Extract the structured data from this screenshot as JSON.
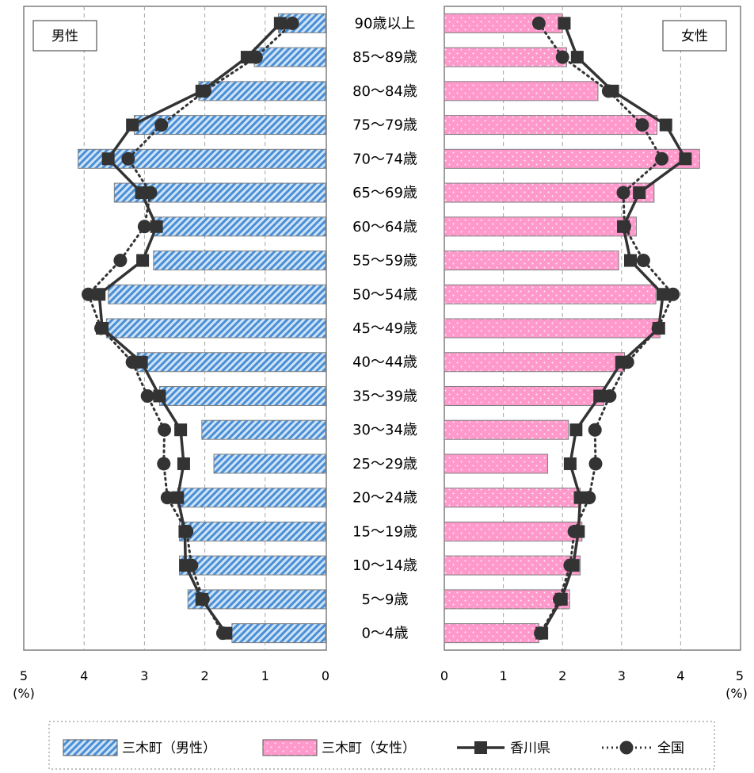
{
  "chart_data": {
    "type": "bar",
    "age_groups": [
      "90歳以上",
      "85〜89歳",
      "80〜84歳",
      "75〜79歳",
      "70〜74歳",
      "65〜69歳",
      "60〜64歳",
      "55〜59歳",
      "50〜54歳",
      "45〜49歳",
      "40〜44歳",
      "35〜39歳",
      "30〜34歳",
      "25〜29歳",
      "20〜24歳",
      "15〜19歳",
      "10〜14歳",
      "5〜9歳",
      "0〜4歳"
    ],
    "panels": [
      {
        "title": "男性",
        "direction": "left",
        "xlim": [
          0,
          5
        ],
        "ticks": [
          "0",
          "1",
          "2",
          "3",
          "4",
          "5"
        ],
        "unit": "(%)",
        "series": [
          {
            "name": "三木町（男性）",
            "kind": "bar",
            "color": "#5b9bd5",
            "values": [
              0.78,
              1.18,
              2.1,
              3.17,
              4.1,
              3.5,
              2.85,
              2.85,
              3.6,
              3.63,
              3.12,
              2.75,
              2.05,
              1.85,
              2.45,
              2.42,
              2.42,
              2.28,
              1.55
            ]
          },
          {
            "name": "香川県",
            "kind": "line",
            "color": "#333333",
            "values": [
              0.75,
              1.3,
              2.05,
              3.2,
              3.6,
              3.05,
              2.8,
              3.03,
              3.75,
              3.7,
              3.05,
              2.75,
              2.4,
              2.35,
              2.45,
              2.33,
              2.32,
              2.05,
              1.65
            ]
          },
          {
            "name": "全国",
            "kind": "dotted-line",
            "color": "#333333",
            "values": [
              0.55,
              1.15,
              2.0,
              2.72,
              3.27,
              2.9,
              3.0,
              3.4,
              3.93,
              3.72,
              3.2,
              2.95,
              2.67,
              2.68,
              2.62,
              2.3,
              2.22,
              2.03,
              1.7
            ]
          }
        ]
      },
      {
        "title": "女性",
        "direction": "right",
        "xlim": [
          0,
          5
        ],
        "ticks": [
          "0",
          "1",
          "2",
          "3",
          "4",
          "5"
        ],
        "unit": "(%)",
        "series": [
          {
            "name": "三木町（女性）",
            "kind": "bar",
            "color": "#ff99cc",
            "values": [
              2.0,
              2.07,
              2.6,
              3.6,
              4.32,
              3.55,
              3.25,
              2.95,
              3.58,
              3.65,
              3.05,
              2.7,
              2.1,
              1.75,
              2.3,
              2.33,
              2.3,
              2.12,
              1.6
            ]
          },
          {
            "name": "香川県",
            "kind": "line",
            "color": "#333333",
            "values": [
              2.03,
              2.25,
              2.85,
              3.75,
              4.08,
              3.3,
              3.03,
              3.15,
              3.7,
              3.63,
              3.0,
              2.63,
              2.23,
              2.13,
              2.3,
              2.27,
              2.18,
              1.98,
              1.65
            ]
          },
          {
            "name": "全国",
            "kind": "dotted-line",
            "color": "#333333",
            "values": [
              1.6,
              2.0,
              2.78,
              3.35,
              3.68,
              3.03,
              3.05,
              3.37,
              3.87,
              3.62,
              3.1,
              2.8,
              2.55,
              2.56,
              2.45,
              2.2,
              2.13,
              1.95,
              1.63
            ]
          }
        ]
      }
    ],
    "legend": [
      "三木町（男性）",
      "三木町（女性）",
      "香川県",
      "全国"
    ],
    "grid": true,
    "legend_placement": "bottom"
  }
}
